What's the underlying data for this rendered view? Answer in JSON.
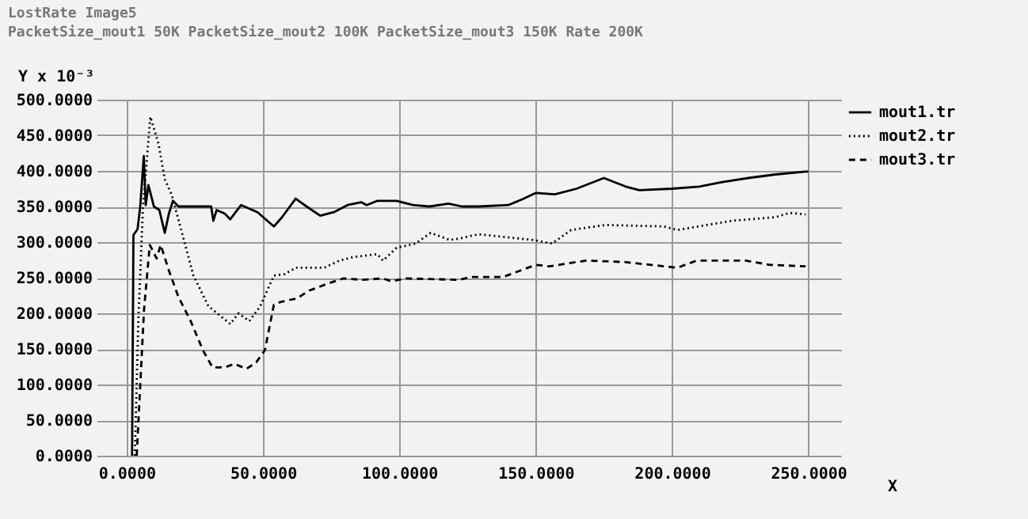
{
  "chart_data": {
    "type": "line",
    "title": "LostRate Image5",
    "subtitle": "PacketSize_mout1 50K PacketSize_mout2 100K PacketSize_mout3 150K Rate 200K",
    "xlabel": "X",
    "ylabel": "Y x 10⁻³",
    "xlim": [
      -11,
      262
    ],
    "xticks": [
      {
        "value": 0,
        "label": "0.0000"
      },
      {
        "value": 50,
        "label": "50.0000"
      },
      {
        "value": 100,
        "label": "100.0000"
      },
      {
        "value": 150,
        "label": "150.0000"
      },
      {
        "value": 200,
        "label": "200.0000"
      },
      {
        "value": 250,
        "label": "250.0000"
      }
    ],
    "ylim": [
      0,
      500
    ],
    "yticks": [
      {
        "value": 0,
        "label": "0.0000"
      },
      {
        "value": 50,
        "label": "50.0000"
      },
      {
        "value": 100,
        "label": "100.0000"
      },
      {
        "value": 150,
        "label": "150.0000"
      },
      {
        "value": 200,
        "label": "200.0000"
      },
      {
        "value": 250,
        "label": "250.0000"
      },
      {
        "value": 300,
        "label": "300.0000"
      },
      {
        "value": 350,
        "label": "350.0000"
      },
      {
        "value": 400,
        "label": "400.0000"
      },
      {
        "value": 450,
        "label": "450.0000"
      },
      {
        "value": 500,
        "label": "500.0000"
      }
    ],
    "grid": true,
    "legend": "top right",
    "series": [
      {
        "name": "mout1.tr",
        "color": "#000000",
        "line_style": "solid",
        "x": [
          2,
          2.5,
          4,
          5,
          6.3,
          7,
          8,
          9,
          10,
          12,
          14,
          15.5,
          17,
          19,
          31,
          31.8,
          33,
          36,
          38,
          42,
          48,
          54,
          57,
          62,
          66,
          71,
          76,
          81,
          86,
          88,
          92,
          99,
          105,
          111,
          118,
          123,
          129,
          140,
          145,
          150,
          157,
          165,
          175,
          183,
          188,
          200,
          210,
          218,
          228,
          238,
          249,
          250
        ],
        "values": [
          0,
          310,
          318,
          350,
          421,
          352,
          380,
          365,
          350,
          345,
          313,
          340,
          358,
          350,
          350,
          330,
          345,
          340,
          332,
          352,
          342,
          322,
          335,
          361,
          350,
          337,
          342,
          352,
          356,
          352,
          358,
          358,
          352,
          350,
          354,
          350,
          350,
          352,
          360,
          369,
          367,
          375,
          390,
          378,
          373,
          375,
          378,
          384,
          390,
          395,
          399,
          399
        ]
      },
      {
        "name": "mout2.tr",
        "color": "#000000",
        "line_style": "dotted",
        "x": [
          3,
          4.3,
          6,
          8.7,
          11.7,
          14,
          16.5,
          21,
          24.5,
          30,
          38,
          41,
          45,
          49,
          54,
          58,
          62,
          72.5,
          78,
          83,
          92,
          94,
          99,
          106,
          111.5,
          118.5,
          122,
          129,
          149,
          156,
          163,
          175.5,
          197,
          202,
          222,
          238,
          243,
          249
        ],
        "values": [
          0,
          189,
          350,
          476,
          438,
          388,
          367,
          303,
          253,
          210,
          185,
          200,
          189,
          210,
          253,
          255,
          264,
          264,
          274,
          279,
          283,
          274,
          292,
          298,
          313,
          303,
          305,
          311,
          303,
          298,
          317,
          324,
          322,
          317,
          330,
          335,
          341,
          339
        ]
      },
      {
        "name": "mout3.tr",
        "color": "#000000",
        "line_style": "dashed",
        "x": [
          3.7,
          6.4,
          8.5,
          11,
          12.5,
          15.5,
          19,
          23.5,
          28,
          31.5,
          36,
          39.5,
          44,
          47.5,
          50.7,
          54,
          56.5,
          62.5,
          67,
          74,
          79.5,
          86.5,
          94,
          97,
          102.5,
          122,
          126,
          138,
          150,
          155,
          168.5,
          182.5,
          202,
          209,
          227,
          236,
          249
        ],
        "values": [
          0,
          206,
          296,
          277,
          296,
          260,
          223,
          189,
          148,
          124,
          124,
          129,
          122,
          131,
          148,
          212,
          216,
          221,
          232,
          242,
          249,
          247,
          249,
          245,
          249,
          247,
          251,
          251,
          268,
          266,
          274,
          272,
          264,
          274,
          274,
          268,
          266
        ]
      }
    ]
  }
}
